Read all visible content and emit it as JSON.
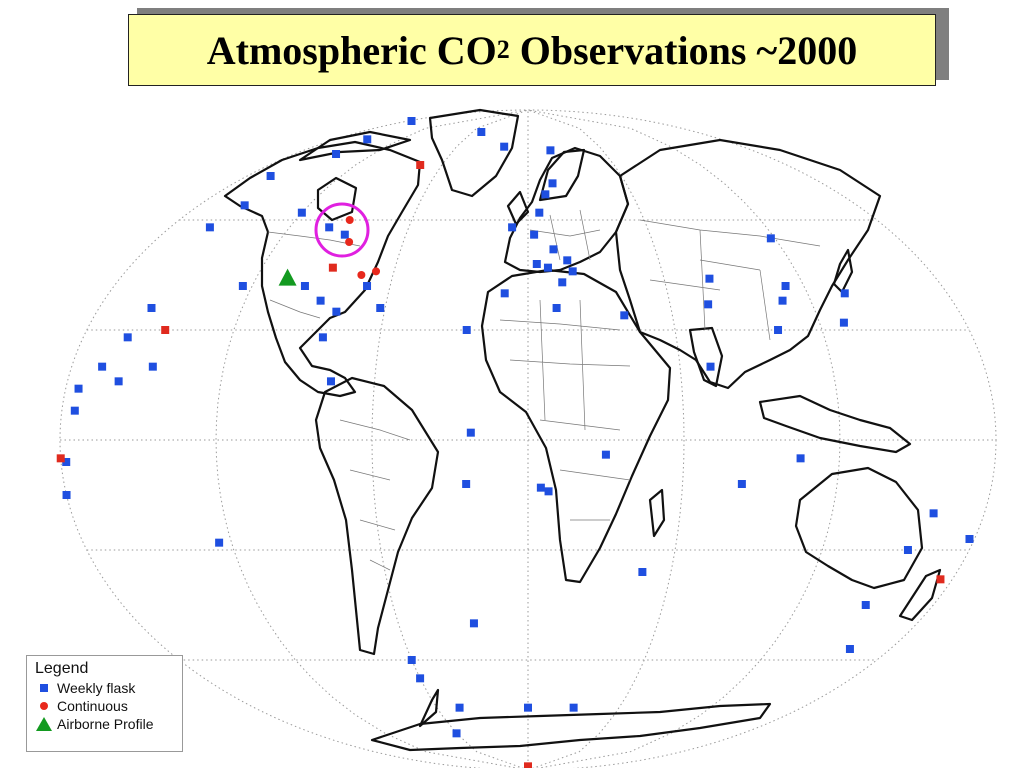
{
  "title": {
    "prefix": "Atmospheric CO",
    "subscript": "2",
    "suffix": " Observations ~2000"
  },
  "legend": {
    "heading": "Legend",
    "items": [
      {
        "label": "Weekly flask",
        "symbol": "blue-square",
        "color": "#1f4fe0"
      },
      {
        "label": "Continuous",
        "symbol": "red-circle",
        "color": "#e8281c"
      },
      {
        "label": "Airborne Profile",
        "symbol": "green-triangle",
        "color": "#139a20"
      }
    ]
  },
  "colors": {
    "weekly_flask": "#1f4fe0",
    "continuous": "#e8281c",
    "continuous_square": "#e02a1e",
    "airborne_profile": "#139a20",
    "highlight_circle": "#e020e0",
    "title_background": "#ffffa6"
  },
  "map": {
    "projection": "elliptical world map",
    "graticule": "dotted"
  },
  "stations": {
    "weekly_flask": [
      [
        -175,
        87
      ],
      [
        -150,
        82
      ],
      [
        -148,
        78
      ],
      [
        -165,
        72
      ],
      [
        -155,
        64
      ],
      [
        -160,
        58
      ],
      [
        -120,
        62
      ],
      [
        -100,
        58
      ],
      [
        -90,
        56
      ],
      [
        -50,
        84
      ],
      [
        -20,
        80
      ],
      [
        18,
        79
      ],
      [
        15,
        70
      ],
      [
        10,
        67
      ],
      [
        6,
        62
      ],
      [
        -8,
        58
      ],
      [
        3,
        56
      ],
      [
        12,
        52
      ],
      [
        18,
        49
      ],
      [
        4,
        48
      ],
      [
        9,
        47
      ],
      [
        20,
        46
      ],
      [
        15,
        43
      ],
      [
        -10,
        40
      ],
      [
        12,
        36
      ],
      [
        40,
        34
      ],
      [
        80,
        44
      ],
      [
        76,
        37
      ],
      [
        108,
        38
      ],
      [
        102,
        30
      ],
      [
        118,
        55
      ],
      [
        112,
        42
      ],
      [
        136,
        40
      ],
      [
        130,
        32
      ],
      [
        -124,
        42
      ],
      [
        -97,
        42
      ],
      [
        -88,
        38
      ],
      [
        -80,
        35
      ],
      [
        -70,
        42
      ],
      [
        -62,
        36
      ],
      [
        -83,
        28
      ],
      [
        -25,
        30
      ],
      [
        -77,
        16
      ],
      [
        -22,
        2
      ],
      [
        -175,
        14
      ],
      [
        -168,
        20
      ],
      [
        -162,
        28
      ],
      [
        -158,
        36
      ],
      [
        -148,
        20
      ],
      [
        -160,
        16
      ],
      [
        -175,
        8
      ],
      [
        -178,
        -6
      ],
      [
        -180,
        -15
      ],
      [
        -125,
        -28
      ],
      [
        -24,
        -12
      ],
      [
        5,
        -13
      ],
      [
        30,
        -4
      ],
      [
        72,
        20
      ],
      [
        83,
        -12
      ],
      [
        178,
        -27
      ],
      [
        160,
        -20
      ],
      [
        155,
        -30
      ],
      [
        150,
        -45
      ],
      [
        48,
        -36
      ],
      [
        160,
        -57
      ],
      [
        -25,
        -50
      ],
      [
        -60,
        -60
      ],
      [
        -60,
        -65
      ],
      [
        -45,
        -73
      ],
      [
        0,
        -73
      ],
      [
        30,
        -73
      ],
      [
        -60,
        -80
      ],
      [
        8,
        -14
      ],
      [
        105,
        -5
      ]
    ],
    "continuous": [
      [
        -92,
        60
      ],
      [
        -86,
        54
      ],
      [
        -74,
        45
      ],
      [
        -68,
        46
      ]
    ],
    "continuous_square": [
      [
        -75,
        75
      ],
      [
        -88,
        47
      ],
      [
        -148,
        30
      ],
      [
        -180,
        -5
      ],
      [
        175,
        -38
      ],
      [
        0,
        -89
      ]
    ],
    "airborne_profile": [
      [
        -106,
        44
      ]
    ]
  }
}
